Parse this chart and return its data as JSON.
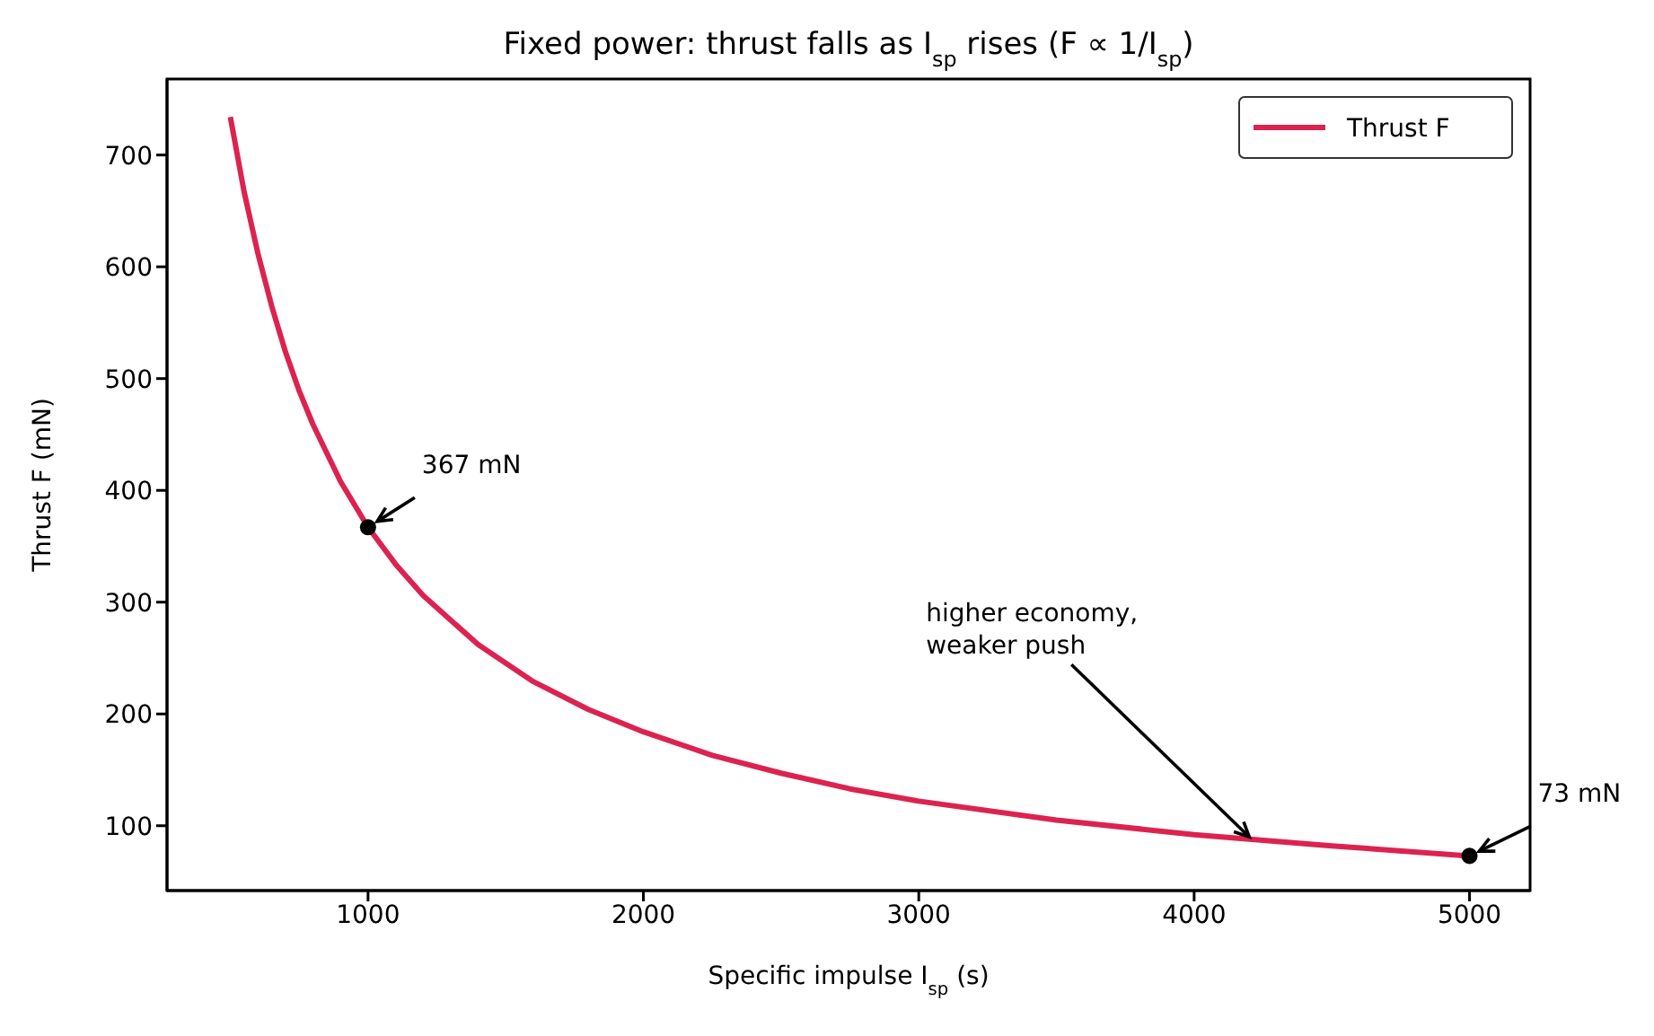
{
  "chart_data": {
    "type": "line",
    "title": "Fixed power: thrust falls as I$_{sp}$ rises  (F ∝ 1/I$_{sp}$)",
    "xlabel": "Specific impulse  I$_{sp}$  (s)",
    "ylabel": "Thrust  F  (mN)",
    "xlim": [
      270,
      5220
    ],
    "ylim": [
      42,
      768
    ],
    "xticks": [
      1000,
      2000,
      3000,
      4000,
      5000
    ],
    "yticks": [
      100,
      200,
      300,
      400,
      500,
      600,
      700
    ],
    "legend": "top right",
    "series": [
      {
        "name": "Thrust F",
        "type": "line",
        "color": "#dc2350",
        "marker": "none",
        "x": [
          500,
          550,
          600,
          650,
          700,
          750,
          800,
          900,
          1000,
          1100,
          1200,
          1400,
          1600,
          1800,
          2000,
          2250,
          2500,
          2750,
          3000,
          3500,
          4000,
          4500,
          5000
        ],
        "values": [
          734,
          667,
          612,
          565,
          524,
          489,
          459,
          408,
          367,
          334,
          306,
          262,
          229,
          204,
          184,
          163,
          147,
          133,
          122,
          105,
          92,
          82,
          73
        ]
      },
      {
        "type": "scatter",
        "color": "#000000",
        "marker": "circle",
        "x": [
          1000,
          5000
        ],
        "values": [
          367,
          73
        ]
      }
    ],
    "annotations": [
      {
        "text": "367 mN",
        "x": 1000,
        "y": 367
      },
      {
        "text": "73 mN",
        "x": 5000,
        "y": 73
      },
      {
        "text": "higher economy,\nweaker push",
        "x": 4200,
        "y": 90
      }
    ]
  }
}
